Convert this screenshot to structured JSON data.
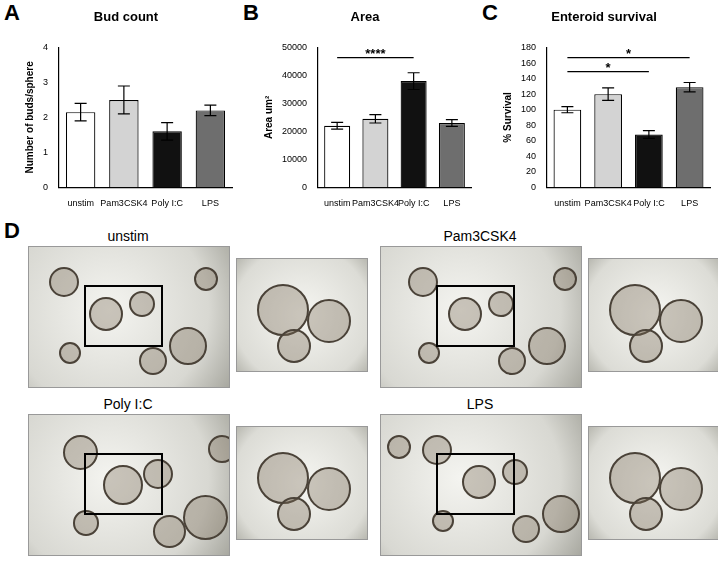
{
  "chart_data": [
    {
      "type": "bar",
      "panel_label": "A",
      "title": "Bud count",
      "y_label": "Number of buds/sphere",
      "categories": [
        "unstim",
        "Pam3CSK4",
        "Poly I:C",
        "LPS"
      ],
      "values": [
        2.15,
        2.5,
        1.6,
        2.2
      ],
      "errors": [
        0.25,
        0.4,
        0.25,
        0.15
      ],
      "colors": [
        "#ffffff",
        "#d3d3d3",
        "#111111",
        "#6e6e6e"
      ],
      "ylim": [
        0,
        4
      ],
      "yticks": [
        0,
        1,
        2,
        3,
        4
      ],
      "grid": false,
      "annotations": []
    },
    {
      "type": "bar",
      "panel_label": "B",
      "title": "Area",
      "y_label": "Area um²",
      "categories": [
        "unstim",
        "Pam3CSK4",
        "Poly I:C",
        "LPS"
      ],
      "values": [
        22000,
        24500,
        38000,
        23000
      ],
      "errors": [
        1200,
        1500,
        3000,
        1200
      ],
      "colors": [
        "#ffffff",
        "#d3d3d3",
        "#111111",
        "#6e6e6e"
      ],
      "ylim": [
        0,
        50000
      ],
      "yticks": [
        0,
        10000,
        20000,
        30000,
        40000,
        50000
      ],
      "grid": false,
      "annotations": [
        {
          "text": "****",
          "from": "unstim",
          "to": "Poly I:C"
        }
      ]
    },
    {
      "type": "bar",
      "panel_label": "C",
      "title": "Enteroid survival",
      "y_label": "% Survival",
      "categories": [
        "unstim",
        "Pam3CSK4",
        "Poly I:C",
        "LPS"
      ],
      "values": [
        100,
        120,
        68,
        129
      ],
      "errors": [
        4,
        8,
        5,
        6
      ],
      "colors": [
        "#ffffff",
        "#d3d3d3",
        "#111111",
        "#6e6e6e"
      ],
      "ylim": [
        0,
        180
      ],
      "yticks": [
        0,
        20,
        40,
        60,
        80,
        100,
        120,
        140,
        160,
        180
      ],
      "grid": false,
      "annotations": [
        {
          "text": "*",
          "from": "unstim",
          "to": "Poly I:C"
        },
        {
          "text": "*",
          "from": "unstim",
          "to": "LPS"
        }
      ]
    }
  ],
  "image_panel": {
    "panel_label": "D",
    "images": [
      "unstim",
      "Pam3CSK4",
      "Poly I:C",
      "LPS"
    ]
  }
}
